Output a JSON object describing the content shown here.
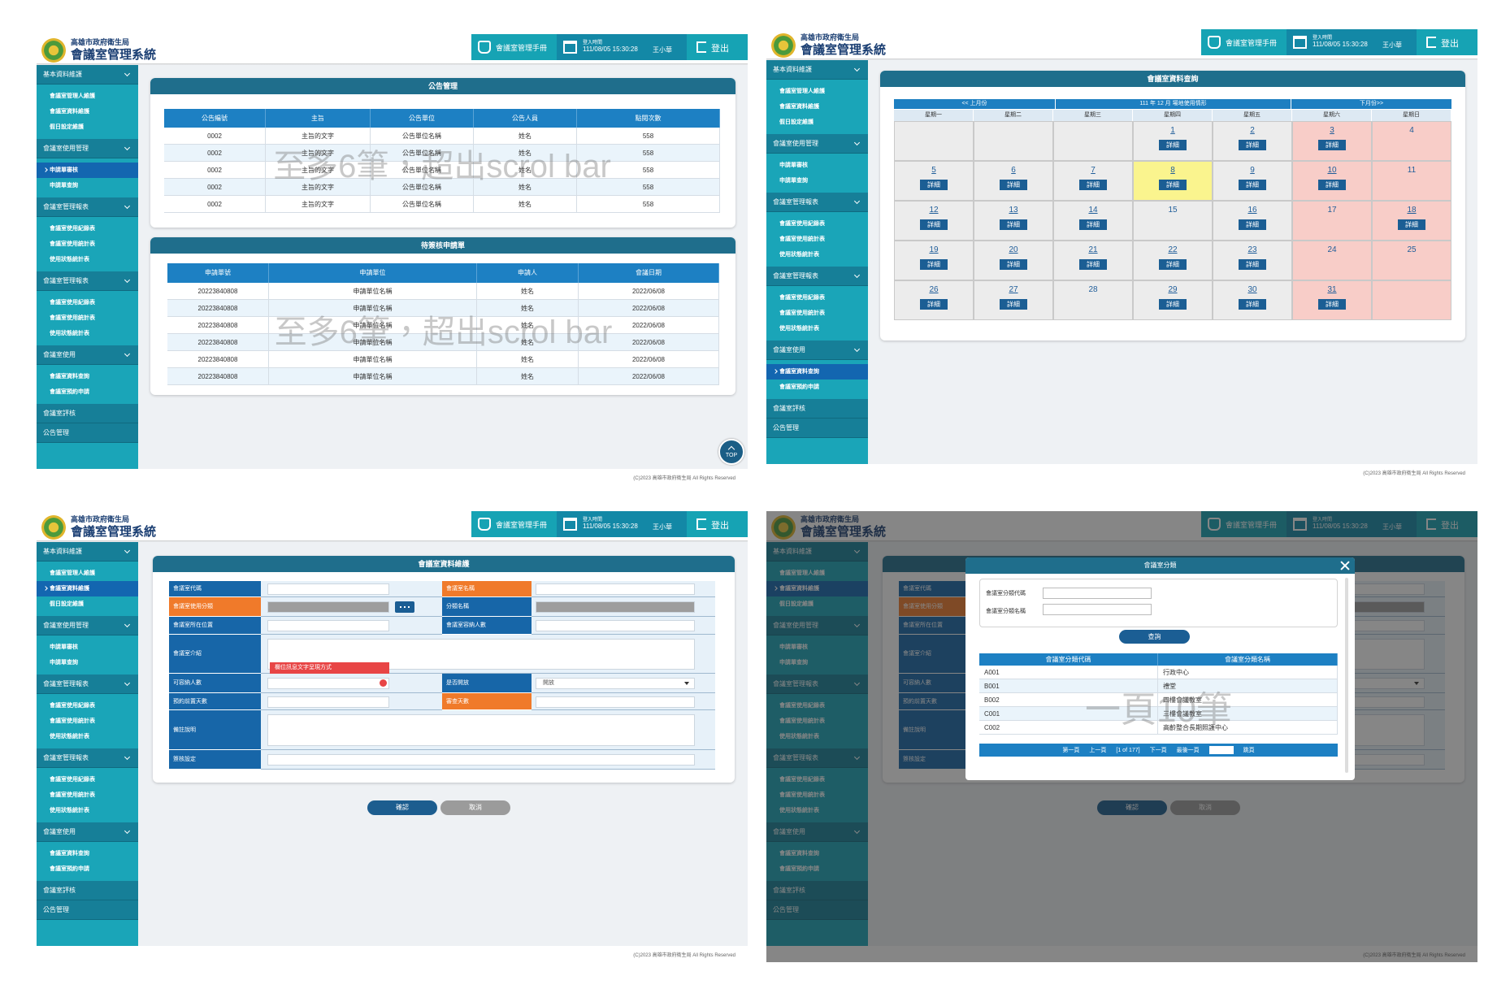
{
  "header": {
    "org": "高雄市政府衛生局",
    "system": "會議室管理系統",
    "manual": "會議室管理手冊",
    "login_label": "登入時間",
    "login_time": "111/08/05 15:30:28",
    "user": "王小華",
    "logout": "登出"
  },
  "sidebar": [
    {
      "title": "基本資料維護",
      "items": [
        "會議室管理人維護",
        "會議室資料維護",
        "假日設定維護"
      ]
    },
    {
      "title": "會議室使用管理",
      "items": [
        "申請單審核",
        "申請單查詢"
      ]
    },
    {
      "title": "會議室管理報表",
      "items": [
        "會議室使用紀錄表",
        "會議室使用統計表",
        "使用狀態統計表"
      ]
    },
    {
      "title": "會議室管理報表",
      "items": [
        "會議室使用紀錄表",
        "會議室使用統計表",
        "使用狀態統計表"
      ]
    },
    {
      "title": "會議室使用",
      "items": [
        "會議室資料查詢",
        "會議室預約申請"
      ]
    },
    {
      "title": "會議室評核",
      "items": []
    },
    {
      "title": "公告管理",
      "items": []
    }
  ],
  "footer": "(C)2023 高雄市政府衛生局 All Rights Reserved",
  "top_button": "TOP",
  "announcements": {
    "title": "公告管理",
    "columns": [
      "公告編號",
      "主旨",
      "公告單位",
      "公告人員",
      "點閱次數"
    ],
    "rows": [
      [
        "0002",
        "主旨的文字",
        "公告單位名稱",
        "姓名",
        "558"
      ],
      [
        "0002",
        "主旨的文字",
        "公告單位名稱",
        "姓名",
        "558"
      ],
      [
        "0002",
        "主旨的文字",
        "公告單位名稱",
        "姓名",
        "558"
      ],
      [
        "0002",
        "主旨的文字",
        "公告單位名稱",
        "姓名",
        "558"
      ],
      [
        "0002",
        "主旨的文字",
        "公告單位名稱",
        "姓名",
        "558"
      ]
    ],
    "note": "至多6筆，超出scrol bar"
  },
  "pending": {
    "title": "待簽核申請單",
    "columns": [
      "申請單號",
      "申請單位",
      "申請人",
      "會議日期"
    ],
    "rows": [
      [
        "20223840808",
        "申請單位名稱",
        "姓名",
        "2022/06/08"
      ],
      [
        "20223840808",
        "申請單位名稱",
        "姓名",
        "2022/06/08"
      ],
      [
        "20223840808",
        "申請單位名稱",
        "姓名",
        "2022/06/08"
      ],
      [
        "20223840808",
        "申請單位名稱",
        "姓名",
        "2022/06/08"
      ],
      [
        "20223840808",
        "申請單位名稱",
        "姓名",
        "2022/06/08"
      ],
      [
        "20223840808",
        "申請單位名稱",
        "姓名",
        "2022/06/08"
      ]
    ],
    "note": "至多6筆，超出scrol bar"
  },
  "calendar": {
    "title": "會議室資料查詢",
    "prev": "<< 上月份",
    "caption": "111 年 12 月 場地使用情形",
    "next": "下月份>>",
    "weekdays": [
      "星期一",
      "星期二",
      "星期三",
      "星期四",
      "星期五",
      "星期六",
      "星期日"
    ],
    "detail": "詳細",
    "highlight": 8,
    "weeks": [
      [
        null,
        null,
        null,
        {
          "day": 1,
          "detail": true
        },
        {
          "day": 2,
          "detail": true
        },
        {
          "day": 3,
          "detail": true
        },
        {
          "day": 4,
          "detail": false
        }
      ],
      [
        {
          "day": 5,
          "detail": true
        },
        {
          "day": 6,
          "detail": true
        },
        {
          "day": 7,
          "detail": true
        },
        {
          "day": 8,
          "detail": true
        },
        {
          "day": 9,
          "detail": true
        },
        {
          "day": 10,
          "detail": true
        },
        {
          "day": 11,
          "detail": false
        }
      ],
      [
        {
          "day": 12,
          "detail": true
        },
        {
          "day": 13,
          "detail": true
        },
        {
          "day": 14,
          "detail": true
        },
        {
          "day": 15,
          "detail": false
        },
        {
          "day": 16,
          "detail": true
        },
        {
          "day": 17,
          "detail": false
        },
        {
          "day": 18,
          "detail": true
        }
      ],
      [
        {
          "day": 19,
          "detail": true
        },
        {
          "day": 20,
          "detail": true
        },
        {
          "day": 21,
          "detail": true
        },
        {
          "day": 22,
          "detail": true
        },
        {
          "day": 23,
          "detail": true
        },
        {
          "day": 24,
          "detail": false
        },
        {
          "day": 25,
          "detail": false
        }
      ],
      [
        {
          "day": 26,
          "detail": true
        },
        {
          "day": 27,
          "detail": true
        },
        {
          "day": 28,
          "detail": false
        },
        {
          "day": 29,
          "detail": true
        },
        {
          "day": 30,
          "detail": true
        },
        {
          "day": 31,
          "detail": true
        },
        null
      ]
    ]
  },
  "form": {
    "title": "會議室資料維護",
    "rows": [
      {
        "label": "會議室代碼",
        "required": false,
        "right_label": "會議室名稱",
        "right_required": true
      },
      {
        "label": "會議室使用分類",
        "required": true,
        "right_label": "分類名稱",
        "right_required": false
      },
      {
        "label": "會議室所在位置",
        "required": false,
        "right_label": "會議室容納人數",
        "right_required": false
      },
      {
        "label": "會議室介紹",
        "required": false
      },
      {
        "label": "可容納人數",
        "required": false,
        "right_label": "是否開放",
        "right_required": false,
        "right_value": "開放"
      },
      {
        "label": "預約前置天數",
        "required": false,
        "right_label": "審查天數",
        "right_required": true
      },
      {
        "label": "備註說明",
        "required": false
      },
      {
        "label": "簽核設定",
        "required": false
      }
    ],
    "error": "欄位訊息文字呈現方式",
    "confirm": "確認",
    "cancel": "取消"
  },
  "dialog": {
    "title": "會議室分類",
    "code_label": "會議室分類代碼",
    "name_label": "會議室分類名稱",
    "search": "查詢",
    "columns": [
      "會議室分類代碼",
      "會議室分類名稱"
    ],
    "rows": [
      [
        "A001",
        "行政中心"
      ],
      [
        "B001",
        "禮堂"
      ],
      [
        "B002",
        "四樓會議教室"
      ],
      [
        "C001",
        "三樓會議教室"
      ],
      [
        "C002",
        "高齡整合長期照護中心"
      ]
    ],
    "pager": {
      "first": "第一頁",
      "prev": "上一頁",
      "status": "[1 of 177]",
      "next": "下一頁",
      "last": "最後一頁",
      "jump": "跳頁"
    },
    "note": "一頁10筆"
  }
}
